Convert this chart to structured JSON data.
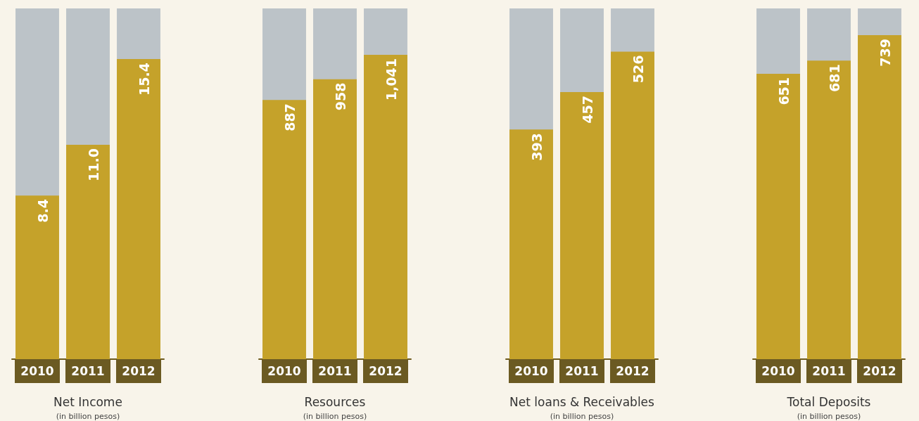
{
  "chart_data": [
    {
      "type": "bar",
      "title": "Net Income",
      "subtitle": "(in billion pesos)",
      "categories": [
        "2010",
        "2011",
        "2012"
      ],
      "values": [
        8.4,
        11.0,
        15.4
      ],
      "value_labels": [
        "8.4",
        "11.0",
        "15.4"
      ],
      "color": "#c5a22a"
    },
    {
      "type": "bar",
      "title": "Resources",
      "subtitle": "(in billion pesos)",
      "categories": [
        "2010",
        "2011",
        "2012"
      ],
      "values": [
        887,
        958,
        1041
      ],
      "value_labels": [
        "887",
        "958",
        "1,041"
      ],
      "color": "#c5a22a"
    },
    {
      "type": "bar",
      "title": "Net loans & Receivables",
      "subtitle": "(in billion pesos)",
      "categories": [
        "2010",
        "2011",
        "2012"
      ],
      "values": [
        393,
        457,
        526
      ],
      "value_labels": [
        "393",
        "457",
        "526"
      ],
      "color": "#c5a22a"
    },
    {
      "type": "bar",
      "title": "Total Deposits",
      "subtitle": "(in billion pesos)",
      "categories": [
        "2010",
        "2011",
        "2012"
      ],
      "values": [
        651,
        681,
        739
      ],
      "value_labels": [
        "651",
        "681",
        "739"
      ],
      "color": "#c5a22a"
    }
  ]
}
